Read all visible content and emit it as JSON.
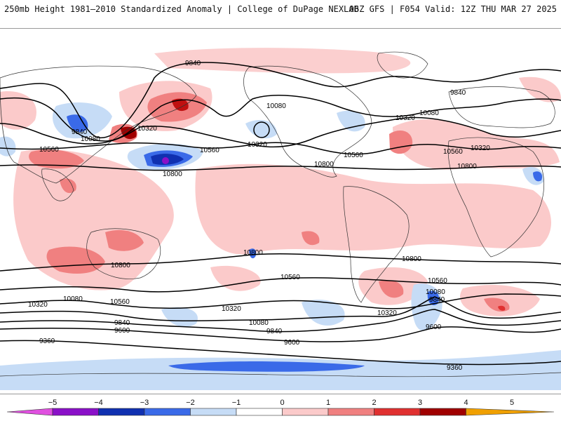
{
  "header": {
    "title": "250mb Height 1981–2010 Standardized Anomaly | College of DuPage NEXLAB",
    "run": "06Z GFS | F054 Valid: 12Z THU MAR 27 2025"
  },
  "contour_labels": {
    "n9840a": "9840",
    "n9840b": "9840",
    "n9840c": "9840",
    "n10080a": "10080",
    "n10080b": "10080",
    "n10080c": "10080",
    "n10320a": "10320",
    "n10320b": "10320",
    "n10320c": "10320",
    "n10320d": "10320",
    "n10560a": "10560",
    "n10560b": "10560",
    "n10560c": "10560",
    "n10560d": "10560",
    "n10800a": "10800",
    "n10800b": "10800",
    "n10800c": "10800",
    "s10800a": "10800",
    "s10800b": "10800",
    "s10800c": "10800",
    "s10560a": "10560",
    "s10560b": "10560",
    "s10560c": "10560",
    "s10320a": "10320",
    "s10320b": "10320",
    "s10320c": "10320",
    "s10080a": "10080",
    "s10080b": "10080",
    "s10080c": "10080",
    "s9840a": "9840",
    "s9840b": "9840",
    "s9840c": "9840",
    "s9600a": "9600",
    "s9600b": "9600",
    "s9600c": "9600",
    "s9360a": "9360",
    "s9360b": "9360"
  },
  "colorbar": {
    "labels": [
      "−5",
      "−4",
      "−3",
      "−2",
      "−1",
      "0",
      "1",
      "2",
      "3",
      "4",
      "5"
    ],
    "colors": [
      "#e050e0",
      "#8a10c8",
      "#1030b0",
      "#3a6ae8",
      "#c6dcf6",
      "#ffffff",
      "#fbcaca",
      "#f08080",
      "#e03030",
      "#a00000",
      "#f0a000"
    ]
  }
}
